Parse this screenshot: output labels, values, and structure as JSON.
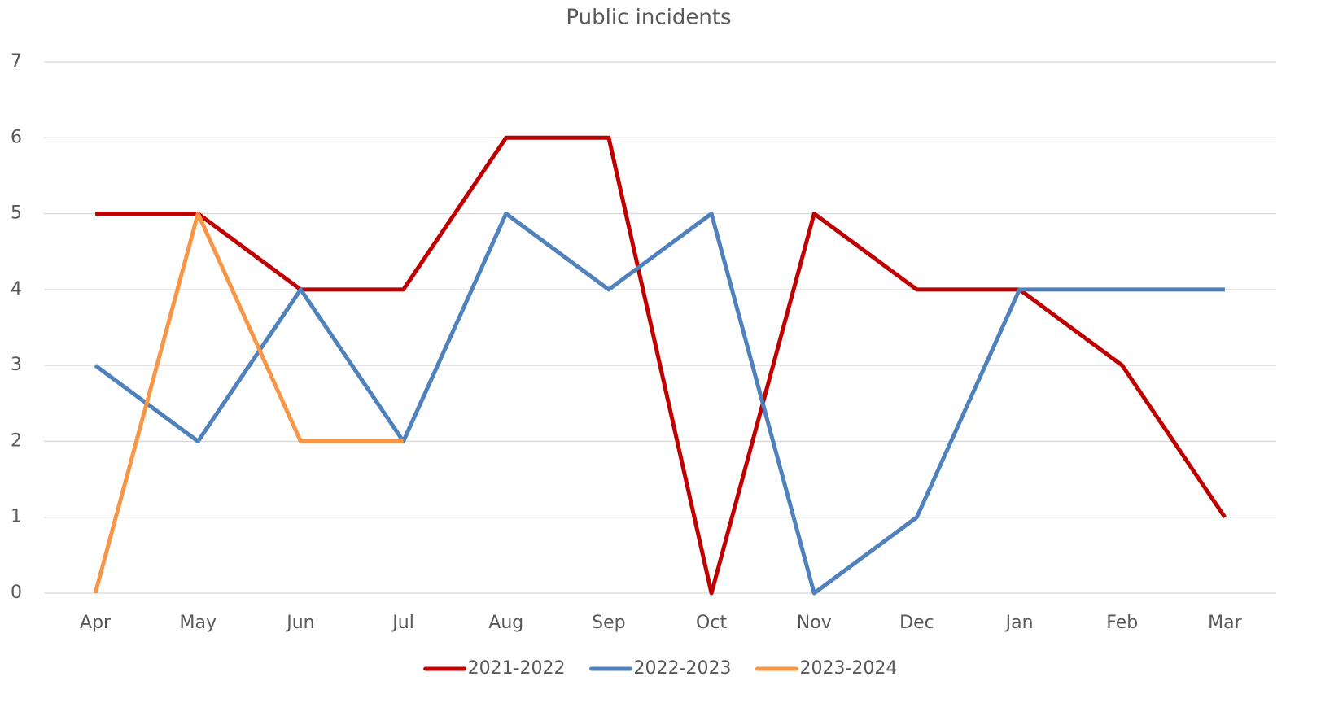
{
  "chart_data": {
    "type": "line",
    "title": "Public incidents",
    "categories": [
      "Apr",
      "May",
      "Jun",
      "Jul",
      "Aug",
      "Sep",
      "Oct",
      "Nov",
      "Dec",
      "Jan",
      "Feb",
      "Mar"
    ],
    "series": [
      {
        "name": "2021-2022",
        "color": "#c00000",
        "values": [
          5,
          5,
          4,
          4,
          6,
          6,
          0,
          5,
          4,
          4,
          3,
          1
        ]
      },
      {
        "name": "2022-2023",
        "color": "#4f81bd",
        "values": [
          3,
          2,
          4,
          2,
          5,
          4,
          5,
          0,
          1,
          4,
          4,
          4
        ]
      },
      {
        "name": "2023-2024",
        "color": "#f79646",
        "values": [
          0,
          5,
          2,
          2,
          null,
          null,
          null,
          null,
          null,
          null,
          null,
          null
        ]
      }
    ],
    "ylim": [
      0,
      7
    ],
    "yticks": [
      0,
      1,
      2,
      3,
      4,
      5,
      6,
      7
    ],
    "grid": true,
    "legend": "bottom"
  }
}
